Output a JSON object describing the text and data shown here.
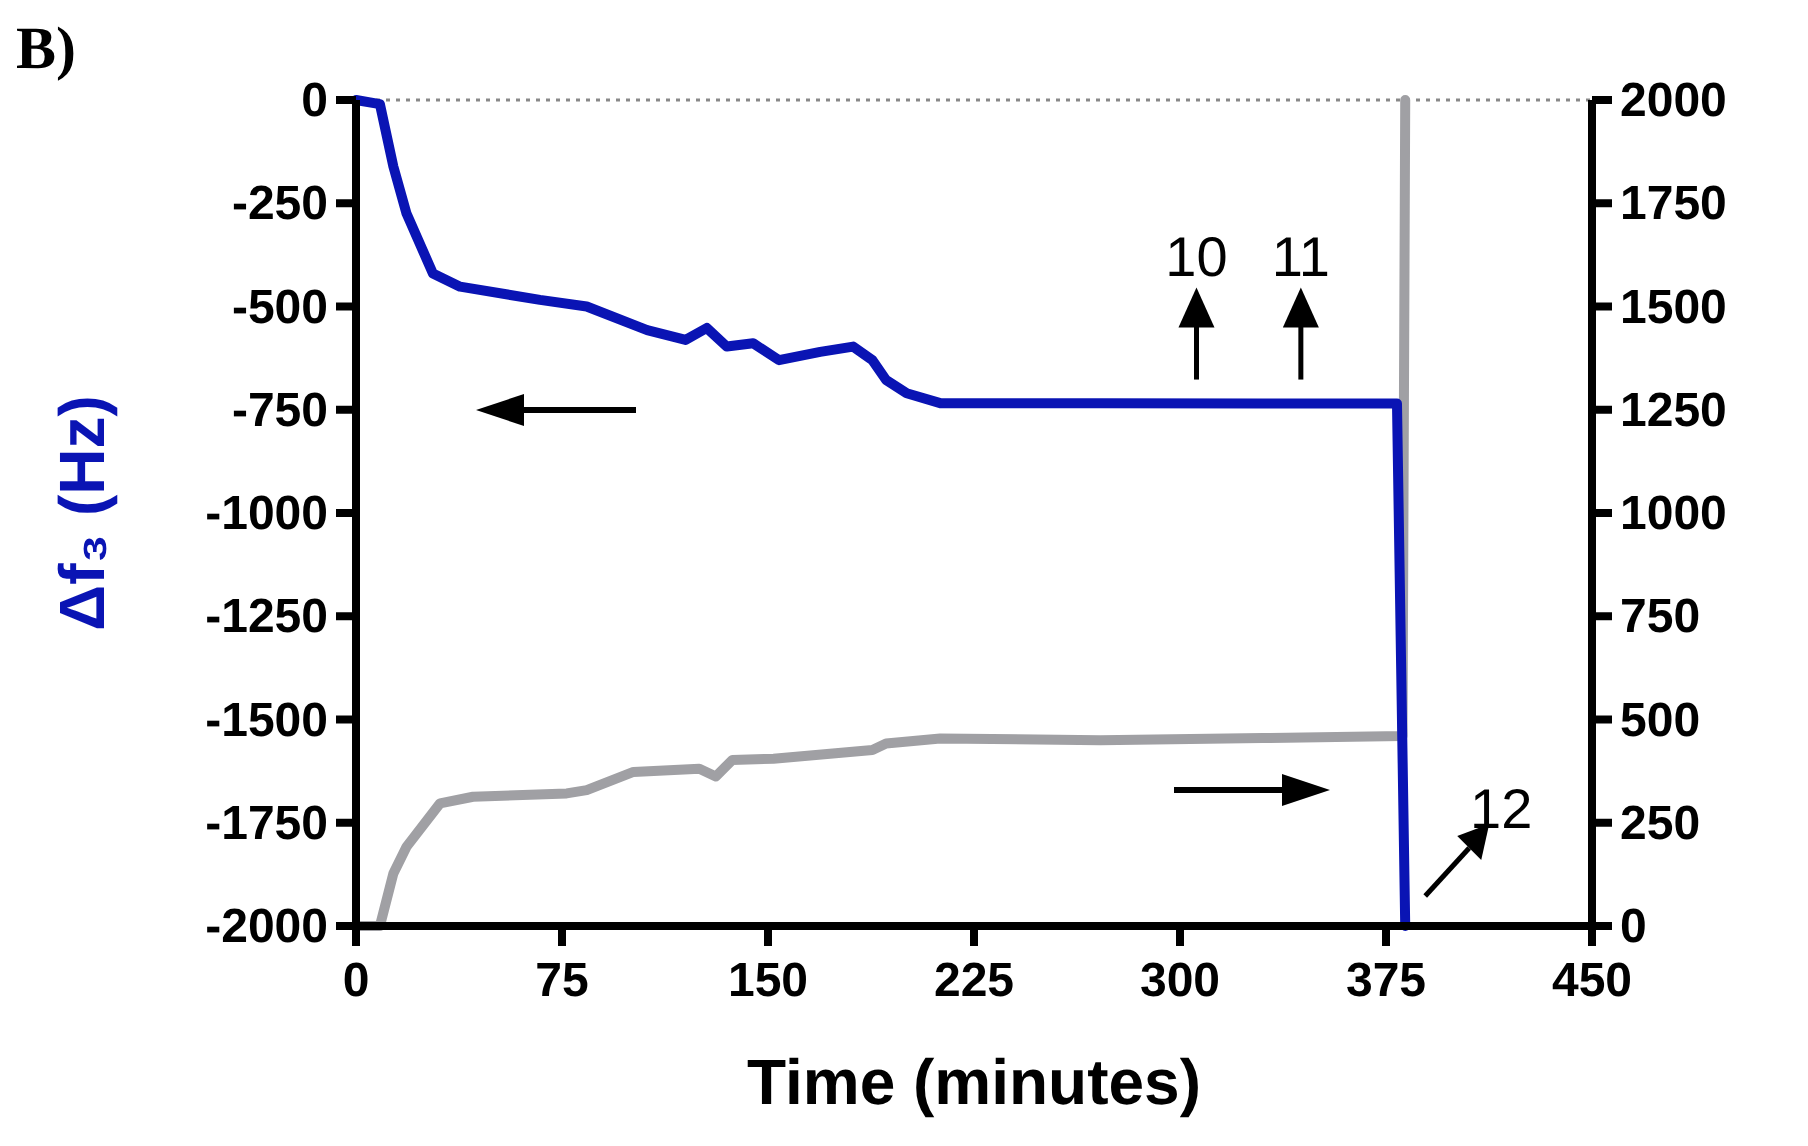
{
  "chart_data": {
    "type": "line",
    "title": "B)",
    "xlabel": "Time (minutes)",
    "ylabel": "Δf₃ (Hz)",
    "xlim": [
      0,
      450
    ],
    "xticks": [
      0,
      75,
      150,
      225,
      300,
      375,
      450
    ],
    "ylim": [
      -2000,
      0
    ],
    "yticks": [
      0,
      -250,
      -500,
      -750,
      -1000,
      -1250,
      -1500,
      -1750,
      -2000
    ],
    "y2lim": [
      0,
      2000
    ],
    "y2ticks": [
      0,
      250,
      500,
      750,
      1000,
      1250,
      1500,
      1750,
      2000
    ],
    "grid": false,
    "line_style": "solid",
    "ref_lines": [
      {
        "axis": "y",
        "value": 0,
        "color": "#888888",
        "line_style": "dotted"
      }
    ],
    "annotations": [
      {
        "text": "10",
        "x": 306,
        "y": -735
      },
      {
        "text": "11",
        "x": 344,
        "y": -735
      },
      {
        "text": "12",
        "x": 382,
        "y": -1850
      }
    ],
    "series": [
      {
        "color": "#0a14b4",
        "x": [
          0,
          8.7,
          13.6,
          18.4,
          28,
          37.9,
          67,
          84,
          106,
          120,
          127.7,
          135,
          144.6,
          154,
          169,
          181,
          188,
          193,
          200.5,
          212.7,
          271,
          330,
          379,
          382
        ],
        "values": [
          0,
          -10,
          -161,
          -275,
          -420,
          -452,
          -484,
          -500,
          -557,
          -581,
          -552,
          -597,
          -589,
          -630,
          -610,
          -597,
          -630,
          -678,
          -710,
          -734,
          -734,
          -735,
          -735,
          -2000
        ]
      },
      {
        "color": "#a0a0a4",
        "axis": "y2",
        "x": [
          0,
          8.7,
          13.6,
          18.4,
          30.6,
          42.6,
          76.7,
          84,
          101,
          125,
          131,
          137,
          152,
          188,
          193,
          212.7,
          271,
          330,
          381,
          382
        ],
        "values": [
          0,
          0,
          127,
          192,
          297,
          313,
          321,
          329,
          373,
          381,
          362,
          402,
          405,
          426,
          442,
          454,
          450,
          455,
          460,
          2000
        ]
      }
    ]
  }
}
